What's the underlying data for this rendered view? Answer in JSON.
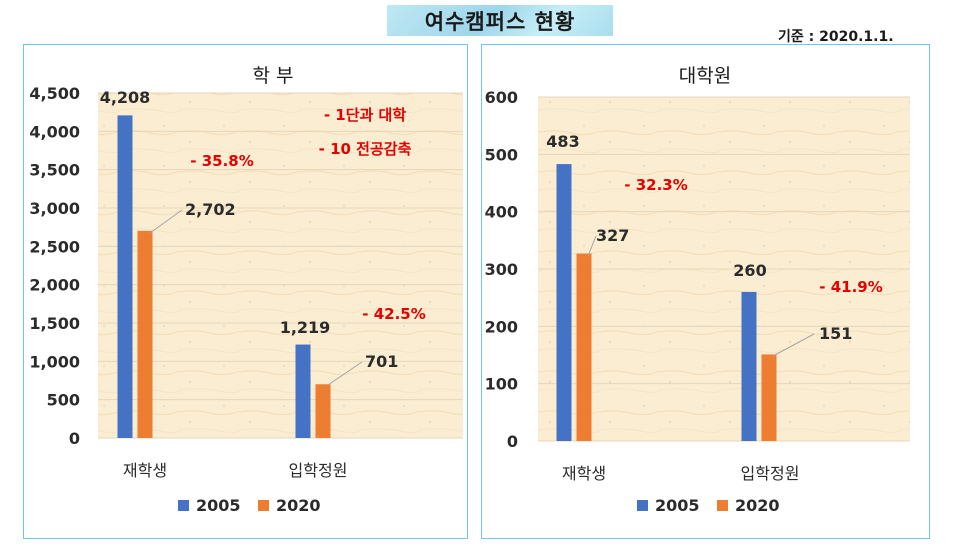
{
  "page": {
    "title": "여수캠퍼스 현황",
    "as_of": "기준 : 2020.1.1."
  },
  "chart_data": [
    {
      "type": "bar",
      "title": "학 부",
      "categories": [
        "재학생",
        "입학정원"
      ],
      "series": [
        {
          "name": "2005",
          "color": "#4472c4",
          "values": [
            4208,
            1219
          ],
          "labels": [
            "4,208",
            "1,219"
          ]
        },
        {
          "name": "2020",
          "color": "#ed7d31",
          "values": [
            2702,
            701
          ],
          "labels": [
            "2,702",
            "701"
          ]
        }
      ],
      "ylim": [
        0,
        4500
      ],
      "yticks": [
        0,
        500,
        1000,
        1500,
        2000,
        2500,
        3000,
        3500,
        4000,
        4500
      ],
      "ytick_labels": [
        "0",
        "500",
        "1,000",
        "1,500",
        "2,000",
        "2,500",
        "3,000",
        "3,500",
        "4,000",
        "4,500"
      ],
      "grid": true,
      "legend": "bottom",
      "annotations": [
        "- 35.8%",
        "- 42.5%",
        "- 1단과 대학",
        "- 10 전공감축"
      ]
    },
    {
      "type": "bar",
      "title": "대학원",
      "categories": [
        "재학생",
        "입학정원"
      ],
      "series": [
        {
          "name": "2005",
          "color": "#4472c4",
          "values": [
            483,
            260
          ],
          "labels": [
            "483",
            "260"
          ]
        },
        {
          "name": "2020",
          "color": "#ed7d31",
          "values": [
            327,
            151
          ],
          "labels": [
            "327",
            "151"
          ]
        }
      ],
      "ylim": [
        0,
        600
      ],
      "yticks": [
        0,
        100,
        200,
        300,
        400,
        500,
        600
      ],
      "ytick_labels": [
        "0",
        "100",
        "200",
        "300",
        "400",
        "500",
        "600"
      ],
      "grid": true,
      "legend": "bottom",
      "annotations": [
        "- 32.3%",
        "- 41.9%"
      ]
    }
  ]
}
